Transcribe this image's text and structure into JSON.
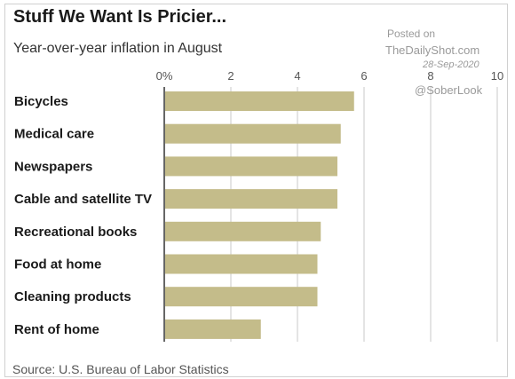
{
  "header": {
    "title": "Stuff We Want Is Pricier...",
    "subtitle": "Year-over-year inflation in August"
  },
  "watermark": {
    "line1": "Posted on",
    "line2": "TheDailyShot.com",
    "line3": "28-Sep-2020",
    "line4": "@SoberLook"
  },
  "footer": {
    "source": "Source: U.S. Bureau of Labor Statistics"
  },
  "colors": {
    "bar": "#c4bc8a",
    "grid": "#c8c8c8",
    "axis": "#333333"
  },
  "chart_data": {
    "type": "bar",
    "orientation": "horizontal",
    "title": "Stuff We Want Is Pricier...",
    "subtitle": "Year-over-year inflation in August",
    "categories": [
      "Bicycles",
      "Medical care",
      "Newspapers",
      "Cable and satellite TV",
      "Recreational books",
      "Food at home",
      "Cleaning products",
      "Rent of home"
    ],
    "values": [
      5.7,
      5.3,
      5.2,
      5.2,
      4.7,
      4.6,
      4.6,
      2.9
    ],
    "xlim": [
      0,
      10
    ],
    "xticks": [
      "0%",
      "2",
      "4",
      "6",
      "8",
      "10"
    ],
    "xtick_values": [
      0,
      2,
      4,
      6,
      8,
      10
    ],
    "grid": true,
    "legend": "none"
  }
}
